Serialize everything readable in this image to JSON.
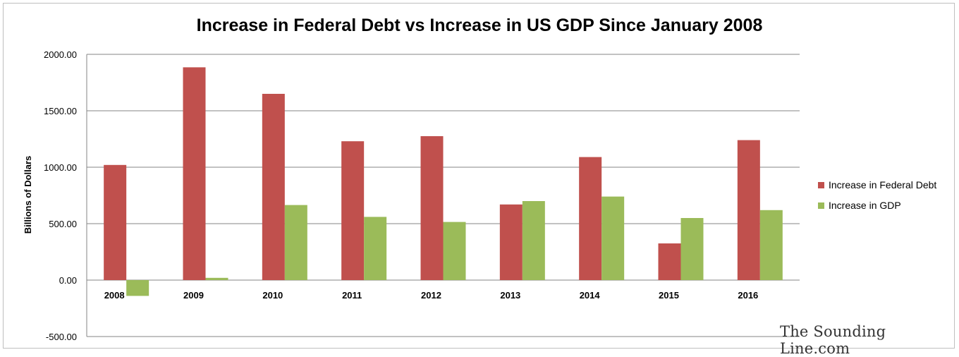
{
  "chart_data": {
    "type": "bar",
    "title": "Increase in Federal Debt vs Increase in US GDP Since January 2008",
    "ylabel": "Billions of Dollars",
    "xlabel": "",
    "categories": [
      "2008",
      "2009",
      "2010",
      "2011",
      "2012",
      "2013",
      "2014",
      "2015",
      "2016"
    ],
    "yticks": [
      "2000.00",
      "1500.00",
      "1000.00",
      "500.00",
      "0.00",
      "-500.00"
    ],
    "ytick_values": [
      2000,
      1500,
      1000,
      500,
      0,
      -500
    ],
    "ylim": [
      -500,
      2000
    ],
    "grid": true,
    "legend_position": "right",
    "series": [
      {
        "name": "Increase in Federal Debt",
        "color": "#c0504d",
        "values": [
          1020,
          1885,
          1650,
          1230,
          1275,
          670,
          1090,
          325,
          1240
        ]
      },
      {
        "name": "Increase in GDP",
        "color": "#9bbb59",
        "values": [
          -140,
          20,
          665,
          560,
          515,
          700,
          740,
          550,
          620
        ]
      }
    ]
  },
  "watermark": "The Sounding Line.com"
}
